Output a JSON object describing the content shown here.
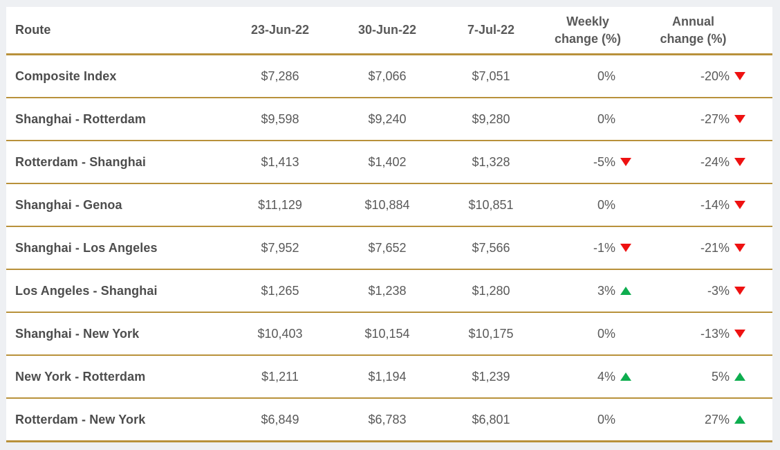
{
  "colors": {
    "accent_border": "#b8913a",
    "page_bg": "#eef0f3",
    "card_bg": "#ffffff",
    "header_text": "#595959",
    "route_text": "#4d4d4d",
    "value_text": "#595959",
    "up_triangle": "#0ead4f",
    "down_triangle": "#ee1111"
  },
  "header": {
    "route": "Route",
    "date1": "23-Jun-22",
    "date2": "30-Jun-22",
    "date3": "7-Jul-22",
    "weekly": "Weekly change (%)",
    "annual": "Annual change (%)"
  },
  "chart_data": {
    "type": "table",
    "columns": [
      "Route",
      "23-Jun-22",
      "30-Jun-22",
      "7-Jul-22",
      "Weekly change (%)",
      "Annual change (%)"
    ],
    "rows": [
      {
        "route": "Composite Index",
        "prices": [
          "$7,286",
          "$7,066",
          "$7,051"
        ],
        "weekly": {
          "value": "0%",
          "direction": null
        },
        "annual": {
          "value": "-20%",
          "direction": "down"
        }
      },
      {
        "route": "Shanghai - Rotterdam",
        "prices": [
          "$9,598",
          "$9,240",
          "$9,280"
        ],
        "weekly": {
          "value": "0%",
          "direction": null
        },
        "annual": {
          "value": "-27%",
          "direction": "down"
        }
      },
      {
        "route": "Rotterdam - Shanghai",
        "prices": [
          "$1,413",
          "$1,402",
          "$1,328"
        ],
        "weekly": {
          "value": "-5%",
          "direction": "down"
        },
        "annual": {
          "value": "-24%",
          "direction": "down"
        }
      },
      {
        "route": "Shanghai - Genoa",
        "prices": [
          "$11,129",
          "$10,884",
          "$10,851"
        ],
        "weekly": {
          "value": "0%",
          "direction": null
        },
        "annual": {
          "value": "-14%",
          "direction": "down"
        }
      },
      {
        "route": "Shanghai - Los Angeles",
        "prices": [
          "$7,952",
          "$7,652",
          "$7,566"
        ],
        "weekly": {
          "value": "-1%",
          "direction": "down"
        },
        "annual": {
          "value": "-21%",
          "direction": "down"
        }
      },
      {
        "route": "Los Angeles - Shanghai",
        "prices": [
          "$1,265",
          "$1,238",
          "$1,280"
        ],
        "weekly": {
          "value": "3%",
          "direction": "up"
        },
        "annual": {
          "value": "-3%",
          "direction": "down"
        }
      },
      {
        "route": "Shanghai - New York",
        "prices": [
          "$10,403",
          "$10,154",
          "$10,175"
        ],
        "weekly": {
          "value": "0%",
          "direction": null
        },
        "annual": {
          "value": "-13%",
          "direction": "down"
        }
      },
      {
        "route": "New York - Rotterdam",
        "prices": [
          "$1,211",
          "$1,194",
          "$1,239"
        ],
        "weekly": {
          "value": "4%",
          "direction": "up"
        },
        "annual": {
          "value": "5%",
          "direction": "up"
        }
      },
      {
        "route": "Rotterdam - New York",
        "prices": [
          "$6,849",
          "$6,783",
          "$6,801"
        ],
        "weekly": {
          "value": "0%",
          "direction": null
        },
        "annual": {
          "value": "27%",
          "direction": "up"
        }
      }
    ]
  }
}
